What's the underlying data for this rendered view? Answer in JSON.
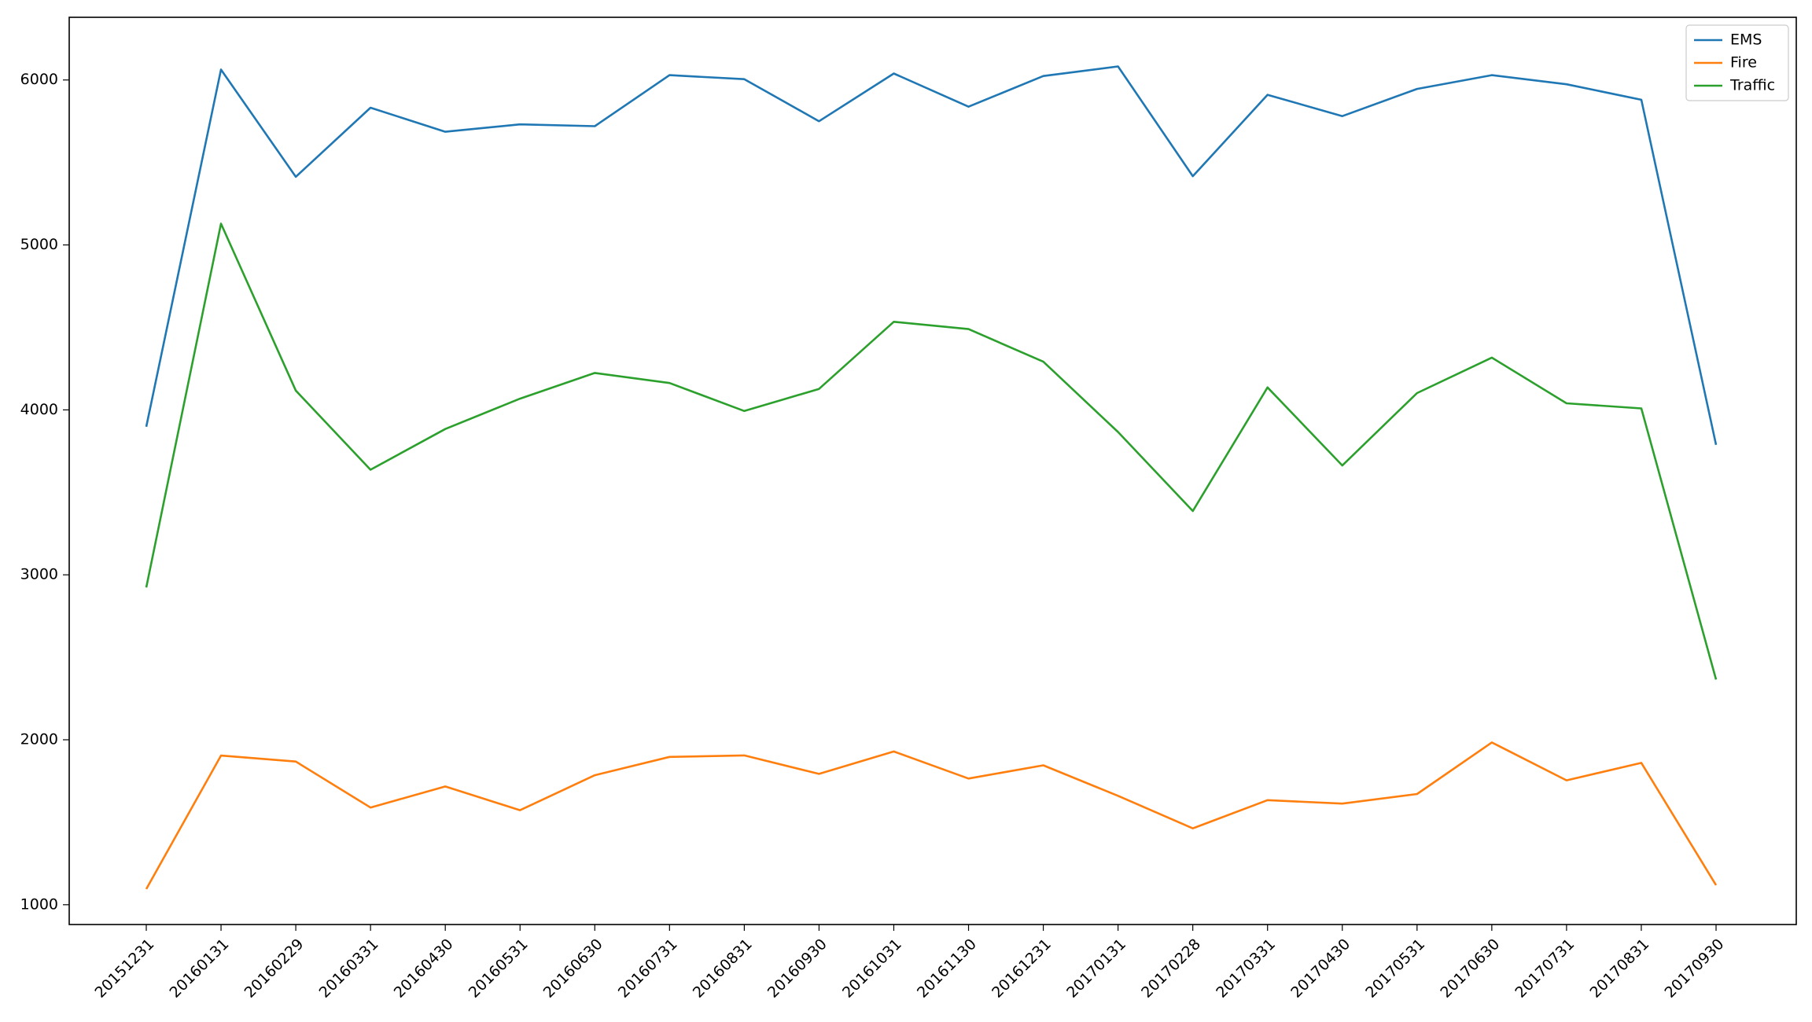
{
  "chart_data": {
    "type": "line",
    "title": "",
    "xlabel": "",
    "ylabel": "",
    "categories": [
      "20151231",
      "20160131",
      "20160229",
      "20160331",
      "20160430",
      "20160531",
      "20160630",
      "20160731",
      "20160831",
      "20160930",
      "20161031",
      "20161130",
      "20161231",
      "20170131",
      "20170228",
      "20170331",
      "20170430",
      "20170531",
      "20170630",
      "20170731",
      "20170831",
      "20170930"
    ],
    "series": [
      {
        "name": "EMS",
        "color": "#1f77b4",
        "values": [
          3898,
          6063,
          5413,
          5832,
          5686,
          5731,
          5720,
          6029,
          6005,
          5750,
          6039,
          5838,
          6024,
          6082,
          5417,
          5910,
          5781,
          5946,
          6029,
          5974,
          5880,
          3788
        ]
      },
      {
        "name": "Fire",
        "color": "#ff7f0e",
        "values": [
          1095,
          1904,
          1868,
          1589,
          1717,
          1573,
          1785,
          1896,
          1905,
          1793,
          1929,
          1765,
          1845,
          1660,
          1463,
          1634,
          1613,
          1671,
          1984,
          1754,
          1860,
          1119
        ]
      },
      {
        "name": "Traffic",
        "color": "#2ca02c",
        "values": [
          2923,
          5129,
          4117,
          3637,
          3884,
          4068,
          4224,
          4163,
          3993,
          4127,
          4534,
          4490,
          4292,
          3866,
          3387,
          4136,
          3663,
          4102,
          4317,
          4040,
          4009,
          2365
        ]
      }
    ],
    "yticks": [
      "1000",
      "2000",
      "3000",
      "4000",
      "5000",
      "6000"
    ],
    "ylim": [
      880,
      6380
    ],
    "grid": false,
    "legend": "top-right"
  }
}
